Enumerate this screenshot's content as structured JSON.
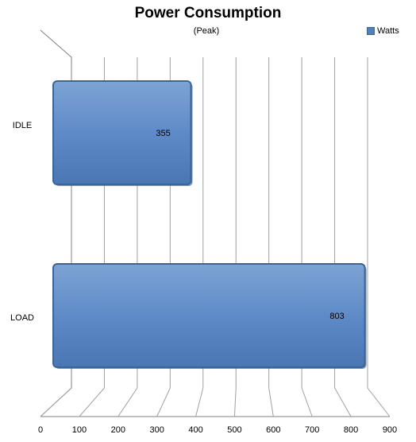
{
  "chart_data": {
    "type": "bar",
    "orientation": "horizontal",
    "title": "Power Consumption",
    "subtitle": "(Peak)",
    "categories": [
      "IDLE",
      "LOAD"
    ],
    "series": [
      {
        "name": "Watts",
        "values": [
          355,
          803
        ],
        "color": "#4f81bd"
      }
    ],
    "data_labels": [
      "355",
      "803"
    ],
    "xlabel": "",
    "ylabel": "",
    "xlim": [
      0,
      900
    ],
    "x_ticks": [
      0,
      100,
      200,
      300,
      400,
      500,
      600,
      700,
      800,
      900
    ],
    "grid": true,
    "legend": "top-right",
    "style": "3d"
  }
}
